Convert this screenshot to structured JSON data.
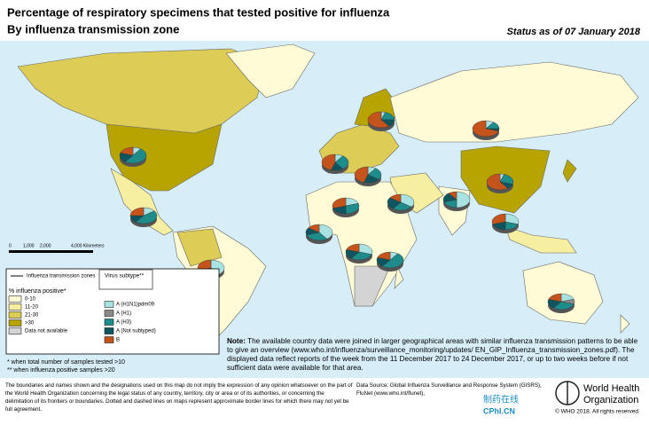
{
  "title_lines": [
    "Percentage of respiratory specimens that tested positive for influenza",
    "By influenza transmission zone"
  ],
  "status": "Status as of 07 January 2018",
  "scale_labels": [
    "0",
    "1,000",
    "2,000",
    "4,000 Kilometers"
  ],
  "legend": {
    "zones_label": "Influenza transmission zones",
    "subtype_title": "Virus subtype**",
    "positive_title": "% influenza positive*",
    "positive_classes": [
      {
        "label": "0-10",
        "color": "#fffbd6"
      },
      {
        "label": "11-20",
        "color": "#f6eea0"
      },
      {
        "label": "21-30",
        "color": "#ddcc55"
      },
      {
        "label": ">30",
        "color": "#b8a400"
      },
      {
        "label": "Data not available",
        "color": "#d4d4d4"
      }
    ],
    "subtypes": [
      {
        "label": "A (H1N1)pdm09",
        "color": "#a9e2e2"
      },
      {
        "label": "A (H1)",
        "color": "#8a8a8a"
      },
      {
        "label": "A (H3)",
        "color": "#1f8c8c"
      },
      {
        "label": "A (Not subtyped)",
        "color": "#0f5560"
      },
      {
        "label": "B",
        "color": "#c4541c"
      }
    ]
  },
  "footnotes": [
    "*   when total number of samples tested >10",
    "**  when influenza positive samples >20"
  ],
  "note": {
    "label": "Note:",
    "text": "The available country data were joined in larger geographical areas with similar influenza transmission patterns to be able to give an overview (www.who.int/influenza/surveillance_monitoring/updates/ EN_GIP_Influenza_transmission_zones.pdf). The displayed data reflect reports of the week from the 11 December 2017 to 24 December 2017, or up to two weeks before if not sufficient data were available for that area."
  },
  "disclaimer": "The boundaries and names shown and the designations used on this map do not imply the expression of any opinion whatsoever on the part of the World Health Organization concerning the legal status of any country, territory, city or area or of its authorities, or concerning the delimitation of its frontiers or boundaries. Dotted and dashed lines on maps represent approximate border lines for which there may not yet be full agreement.",
  "data_source": "Data Source: Global Influenza Surveillance and Response System (GISRS), FluNet (www.who.int/flunet),",
  "who": {
    "name_lines": [
      "World Health",
      "Organization"
    ],
    "copyright": "© WHO 2018. All rights reserved."
  },
  "watermark": {
    "cn": "制药在线",
    "en": "CPhI.CN"
  },
  "pies": [
    {
      "values": [
        10,
        0,
        50,
        20,
        20
      ]
    },
    {
      "values": [
        15,
        0,
        45,
        15,
        25
      ]
    },
    {
      "values": [
        40,
        0,
        20,
        10,
        30
      ]
    },
    {
      "values": [
        10,
        0,
        30,
        15,
        45
      ]
    },
    {
      "values": [
        10,
        0,
        25,
        20,
        45
      ]
    },
    {
      "values": [
        5,
        0,
        20,
        15,
        60
      ]
    },
    {
      "values": [
        10,
        0,
        15,
        5,
        70
      ]
    },
    {
      "values": [
        5,
        0,
        25,
        10,
        60
      ]
    },
    {
      "values": [
        30,
        0,
        20,
        20,
        30
      ]
    },
    {
      "values": [
        35,
        0,
        25,
        25,
        15
      ]
    },
    {
      "values": [
        20,
        0,
        30,
        20,
        30
      ]
    },
    {
      "values": [
        50,
        0,
        20,
        20,
        10
      ]
    },
    {
      "values": [
        40,
        0,
        30,
        15,
        15
      ]
    },
    {
      "values": [
        30,
        0,
        30,
        20,
        20
      ]
    },
    {
      "values": [
        10,
        0,
        50,
        20,
        20
      ]
    },
    {
      "values": [
        20,
        10,
        30,
        20,
        20
      ]
    }
  ]
}
